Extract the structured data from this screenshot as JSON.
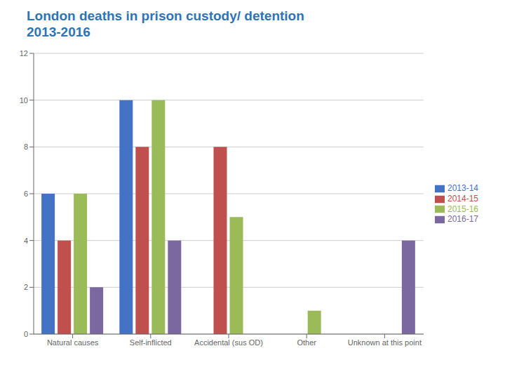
{
  "chart_data": {
    "type": "bar",
    "title": "London deaths in prison custody/ detention\n2013-2016",
    "categories": [
      "Natural causes",
      "Self-inflicted",
      "Accidental (sus OD)",
      "Other",
      "Unknown at this point"
    ],
    "series": [
      {
        "name": "2013-14",
        "color": "#4472C4",
        "values": [
          6,
          10,
          0,
          0,
          0
        ]
      },
      {
        "name": "2014-15",
        "color": "#C0504D",
        "values": [
          4,
          8,
          8,
          0,
          0
        ]
      },
      {
        "name": "2015-16",
        "color": "#9BBB59",
        "values": [
          6,
          10,
          5,
          1,
          0
        ]
      },
      {
        "name": "2016-17",
        "color": "#7B68A0",
        "values": [
          2,
          4,
          0,
          0,
          4
        ]
      }
    ],
    "ylim": [
      0,
      12
    ],
    "yticks": [
      0,
      2,
      4,
      6,
      8,
      10,
      12
    ],
    "grid": true,
    "legend": "right"
  }
}
